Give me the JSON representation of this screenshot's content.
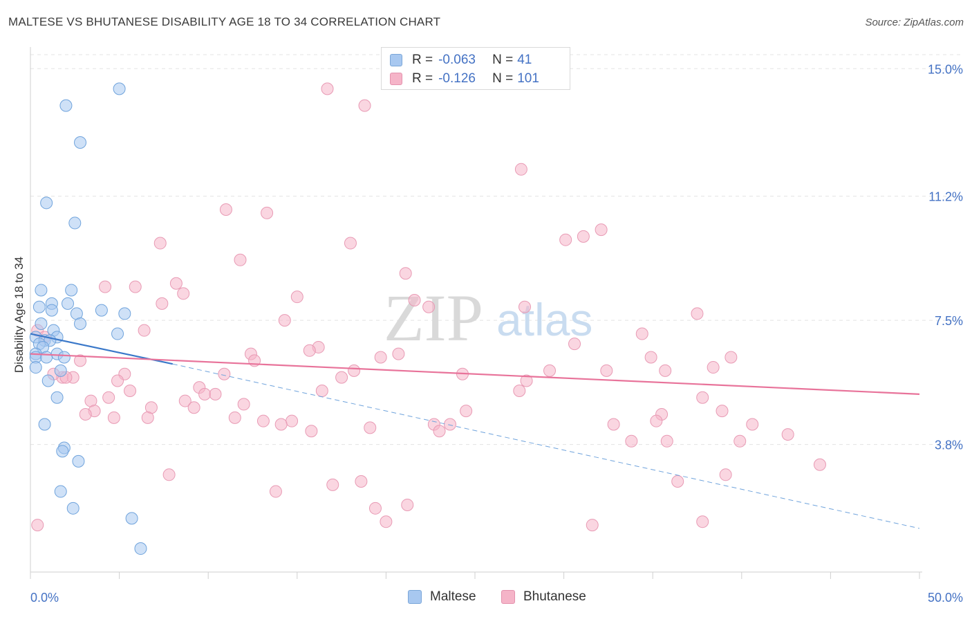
{
  "header": {
    "title": "MALTESE VS BHUTANESE DISABILITY AGE 18 TO 34 CORRELATION CHART",
    "source": "Source: ZipAtlas.com"
  },
  "stats": [
    {
      "label_r": "R =",
      "r": "-0.063",
      "label_n": "N =",
      "n": "41",
      "color": "#a8c8f0"
    },
    {
      "label_r": "R =",
      "r": "-0.126",
      "label_n": "N =",
      "n": "101",
      "color": "#f5b4c8"
    }
  ],
  "legend": [
    {
      "label": "Maltese",
      "color": "#a8c8f0"
    },
    {
      "label": "Bhutanese",
      "color": "#f5b4c8"
    }
  ],
  "watermark": {
    "zip": "ZIP",
    "atlas": "atlas"
  },
  "chart_data": {
    "type": "scatter",
    "title": "MALTESE VS BHUTANESE DISABILITY AGE 18 TO 34 CORRELATION CHART",
    "ylabel": "Disability Age 18 to 34",
    "xlim": [
      0,
      50
    ],
    "ylim": [
      0,
      15.5
    ],
    "x_tick_labels": [
      "0.0%",
      "50.0%"
    ],
    "y_ticks": [
      3.8,
      7.5,
      11.2,
      15.0
    ],
    "y_tick_labels": [
      "3.8%",
      "7.5%",
      "11.2%",
      "15.0%"
    ],
    "grid": true,
    "legend_position": "bottom-center",
    "colors": {
      "maltese": "#5b9bd5",
      "bhutanese": "#e8739a",
      "tick_label": "#4472c4"
    },
    "series": [
      {
        "name": "Maltese",
        "color": "#a8c8f0",
        "stroke": "#6fa3dc",
        "points": [
          [
            5.0,
            14.4
          ],
          [
            2.0,
            13.9
          ],
          [
            2.8,
            12.8
          ],
          [
            0.9,
            11.0
          ],
          [
            2.5,
            10.4
          ],
          [
            0.6,
            8.4
          ],
          [
            2.3,
            8.4
          ],
          [
            1.2,
            8.0
          ],
          [
            2.1,
            8.0
          ],
          [
            0.5,
            7.9
          ],
          [
            1.2,
            7.8
          ],
          [
            4.0,
            7.8
          ],
          [
            5.3,
            7.7
          ],
          [
            2.6,
            7.7
          ],
          [
            2.8,
            7.4
          ],
          [
            0.6,
            7.4
          ],
          [
            1.3,
            7.2
          ],
          [
            4.9,
            7.1
          ],
          [
            0.3,
            7.0
          ],
          [
            1.5,
            7.0
          ],
          [
            0.8,
            6.9
          ],
          [
            1.1,
            6.9
          ],
          [
            0.5,
            6.8
          ],
          [
            0.7,
            6.7
          ],
          [
            0.3,
            6.5
          ],
          [
            1.5,
            6.5
          ],
          [
            0.3,
            6.4
          ],
          [
            0.9,
            6.4
          ],
          [
            1.9,
            6.4
          ],
          [
            0.3,
            6.1
          ],
          [
            1.7,
            6.0
          ],
          [
            1.0,
            5.7
          ],
          [
            1.5,
            5.2
          ],
          [
            0.8,
            4.4
          ],
          [
            1.9,
            3.7
          ],
          [
            1.8,
            3.6
          ],
          [
            2.7,
            3.3
          ],
          [
            1.7,
            2.4
          ],
          [
            2.4,
            1.9
          ],
          [
            5.7,
            1.6
          ],
          [
            6.2,
            0.7
          ]
        ]
      },
      {
        "name": "Bhutanese",
        "color": "#f5b4c8",
        "stroke": "#e89ab4",
        "points": [
          [
            16.7,
            14.4
          ],
          [
            18.8,
            13.9
          ],
          [
            27.6,
            12.0
          ],
          [
            11.0,
            10.8
          ],
          [
            13.3,
            10.7
          ],
          [
            32.1,
            10.2
          ],
          [
            31.1,
            10.0
          ],
          [
            30.1,
            9.9
          ],
          [
            7.3,
            9.8
          ],
          [
            18.0,
            9.8
          ],
          [
            11.8,
            9.3
          ],
          [
            21.1,
            8.9
          ],
          [
            8.2,
            8.6
          ],
          [
            4.2,
            8.5
          ],
          [
            5.9,
            8.5
          ],
          [
            8.6,
            8.3
          ],
          [
            15.0,
            8.2
          ],
          [
            21.6,
            8.1
          ],
          [
            7.4,
            8.0
          ],
          [
            22.4,
            7.9
          ],
          [
            27.8,
            7.9
          ],
          [
            37.5,
            7.7
          ],
          [
            14.3,
            7.5
          ],
          [
            6.4,
            7.2
          ],
          [
            0.4,
            7.2
          ],
          [
            34.4,
            7.1
          ],
          [
            0.8,
            7.0
          ],
          [
            16.2,
            6.7
          ],
          [
            30.6,
            6.8
          ],
          [
            15.7,
            6.6
          ],
          [
            12.4,
            6.5
          ],
          [
            19.7,
            6.4
          ],
          [
            20.7,
            6.5
          ],
          [
            12.6,
            6.3
          ],
          [
            34.9,
            6.4
          ],
          [
            39.4,
            6.4
          ],
          [
            2.8,
            6.3
          ],
          [
            38.4,
            6.1
          ],
          [
            29.2,
            6.0
          ],
          [
            32.4,
            6.0
          ],
          [
            35.7,
            6.0
          ],
          [
            1.8,
            5.8
          ],
          [
            10.9,
            5.9
          ],
          [
            5.3,
            5.9
          ],
          [
            24.3,
            5.9
          ],
          [
            2.4,
            5.8
          ],
          [
            1.3,
            5.9
          ],
          [
            2.0,
            5.8
          ],
          [
            17.5,
            5.8
          ],
          [
            27.9,
            5.7
          ],
          [
            18.2,
            6.0
          ],
          [
            4.9,
            5.7
          ],
          [
            9.5,
            5.5
          ],
          [
            9.8,
            5.3
          ],
          [
            10.4,
            5.3
          ],
          [
            16.4,
            5.4
          ],
          [
            27.5,
            5.4
          ],
          [
            5.6,
            5.4
          ],
          [
            4.4,
            5.2
          ],
          [
            3.4,
            5.1
          ],
          [
            8.7,
            5.1
          ],
          [
            12.0,
            5.0
          ],
          [
            37.8,
            5.2
          ],
          [
            6.8,
            4.9
          ],
          [
            9.2,
            4.9
          ],
          [
            3.6,
            4.8
          ],
          [
            24.5,
            4.8
          ],
          [
            38.9,
            4.8
          ],
          [
            3.1,
            4.7
          ],
          [
            35.5,
            4.7
          ],
          [
            11.5,
            4.6
          ],
          [
            4.7,
            4.6
          ],
          [
            6.6,
            4.6
          ],
          [
            14.7,
            4.5
          ],
          [
            13.1,
            4.5
          ],
          [
            35.2,
            4.5
          ],
          [
            14.1,
            4.4
          ],
          [
            22.7,
            4.4
          ],
          [
            32.8,
            4.4
          ],
          [
            40.6,
            4.4
          ],
          [
            19.1,
            4.3
          ],
          [
            23.6,
            4.4
          ],
          [
            15.8,
            4.2
          ],
          [
            23.0,
            4.2
          ],
          [
            42.6,
            4.1
          ],
          [
            33.8,
            3.9
          ],
          [
            35.8,
            3.9
          ],
          [
            39.9,
            3.9
          ],
          [
            44.4,
            3.2
          ],
          [
            7.8,
            2.9
          ],
          [
            39.1,
            2.9
          ],
          [
            36.4,
            2.7
          ],
          [
            17.0,
            2.6
          ],
          [
            18.6,
            2.7
          ],
          [
            13.8,
            2.4
          ],
          [
            21.2,
            2.0
          ],
          [
            19.4,
            1.9
          ],
          [
            20.0,
            1.5
          ],
          [
            37.8,
            1.5
          ],
          [
            31.6,
            1.4
          ],
          [
            0.4,
            1.4
          ]
        ]
      }
    ],
    "trend_lines": [
      {
        "series": "Maltese",
        "solid": [
          [
            0,
            7.1
          ],
          [
            8,
            6.2
          ]
        ],
        "dashed": [
          [
            8,
            6.2
          ],
          [
            50,
            1.3
          ]
        ]
      },
      {
        "series": "Bhutanese",
        "solid": [
          [
            0,
            6.5
          ],
          [
            50,
            5.3
          ]
        ]
      }
    ]
  }
}
